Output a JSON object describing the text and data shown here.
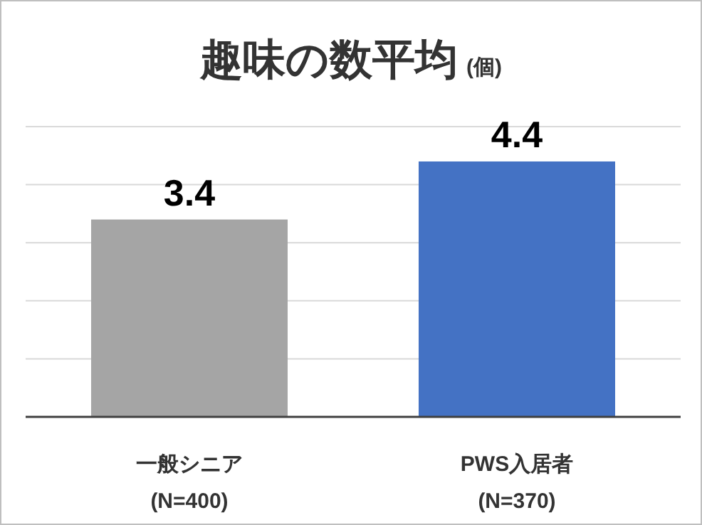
{
  "chart_data": {
    "type": "bar",
    "title": "趣味の数平均",
    "subtitle": "(個)",
    "categories": [
      "一般シニア\n(N=400)",
      "PWS入居者\n(N=370)"
    ],
    "values": [
      3.4,
      4.4
    ],
    "colors": [
      "#a5a5a5",
      "#4472c4"
    ],
    "data_labels": true,
    "ylim": [
      0,
      5
    ],
    "yticks": [
      {
        "value": 0,
        "label": null
      },
      {
        "value": 1,
        "label": null
      },
      {
        "value": 2,
        "label": null
      },
      {
        "value": 3,
        "label": null
      },
      {
        "value": 4,
        "label": null
      },
      {
        "value": 5,
        "label": null
      }
    ],
    "tick_labels": "x",
    "grid": "y"
  }
}
